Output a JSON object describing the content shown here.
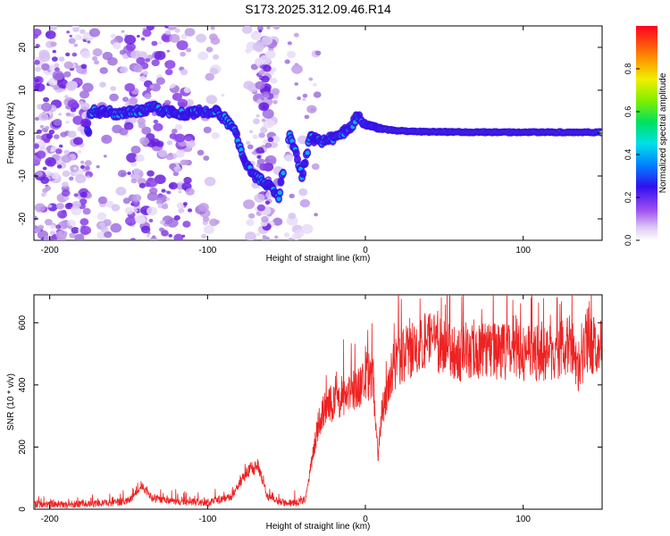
{
  "title": "S173.2025.312.09.46.R14",
  "chart_data": [
    {
      "type": "heatmap",
      "name": "spectrogram",
      "xlabel": "Height of straight line (km)",
      "ylabel": "Frequency (Hz)",
      "xlim": [
        -210,
        150
      ],
      "ylim": [
        -25,
        25
      ],
      "x_ticks": [
        -200,
        -100,
        0,
        100
      ],
      "y_ticks": [
        -20,
        -10,
        0,
        10,
        20
      ],
      "colorbar": {
        "label": "Normalized spectral amplitude",
        "range": [
          0,
          1
        ],
        "ticks": [
          0.0,
          0.2,
          0.4,
          0.6,
          0.8
        ]
      },
      "ridge": [
        {
          "x": -175,
          "y": 5
        },
        {
          "x": -165,
          "y": 5
        },
        {
          "x": -155,
          "y": 4.5
        },
        {
          "x": -145,
          "y": 5
        },
        {
          "x": -135,
          "y": 6
        },
        {
          "x": -125,
          "y": 5
        },
        {
          "x": -115,
          "y": 4.5
        },
        {
          "x": -105,
          "y": 5
        },
        {
          "x": -95,
          "y": 5
        },
        {
          "x": -88,
          "y": 3
        },
        {
          "x": -82,
          "y": 0
        },
        {
          "x": -77,
          "y": -6
        },
        {
          "x": -70,
          "y": -10
        },
        {
          "x": -62,
          "y": -12
        },
        {
          "x": -55,
          "y": -15
        },
        {
          "x": -48,
          "y": 0
        },
        {
          "x": -40,
          "y": -10
        },
        {
          "x": -35,
          "y": -1
        },
        {
          "x": -28,
          "y": -2
        },
        {
          "x": -20,
          "y": -1
        },
        {
          "x": -10,
          "y": 1
        },
        {
          "x": -5,
          "y": 4
        },
        {
          "x": 0,
          "y": 2
        },
        {
          "x": 10,
          "y": 1
        },
        {
          "x": 20,
          "y": 0.5
        },
        {
          "x": 40,
          "y": 0.3
        },
        {
          "x": 80,
          "y": 0.2
        },
        {
          "x": 120,
          "y": 0.2
        },
        {
          "x": 150,
          "y": 0.2
        }
      ]
    },
    {
      "type": "line",
      "name": "snr",
      "xlabel": "Height of straight line (km)",
      "ylabel": "SNR (10 * v/v)",
      "xlim": [
        -210,
        150
      ],
      "ylim": [
        0,
        690
      ],
      "x_ticks": [
        -200,
        -100,
        0,
        100
      ],
      "y_ticks": [
        0,
        200,
        400,
        600
      ],
      "series": [
        {
          "name": "SNR",
          "color": "#ee2222",
          "x": [
            -210,
            -190,
            -170,
            -150,
            -142,
            -135,
            -120,
            -100,
            -85,
            -75,
            -68,
            -62,
            -55,
            -45,
            -38,
            -33,
            -30,
            -25,
            -18,
            -10,
            -3,
            0,
            5,
            8,
            10,
            15,
            20,
            30,
            40,
            60,
            80,
            100,
            120,
            130,
            135,
            140,
            150
          ],
          "y": [
            15,
            15,
            18,
            25,
            75,
            35,
            25,
            20,
            40,
            120,
            140,
            40,
            25,
            20,
            30,
            180,
            270,
            330,
            350,
            370,
            400,
            430,
            420,
            160,
            300,
            420,
            480,
            520,
            540,
            500,
            510,
            500,
            505,
            530,
            460,
            520,
            540
          ]
        }
      ]
    }
  ]
}
